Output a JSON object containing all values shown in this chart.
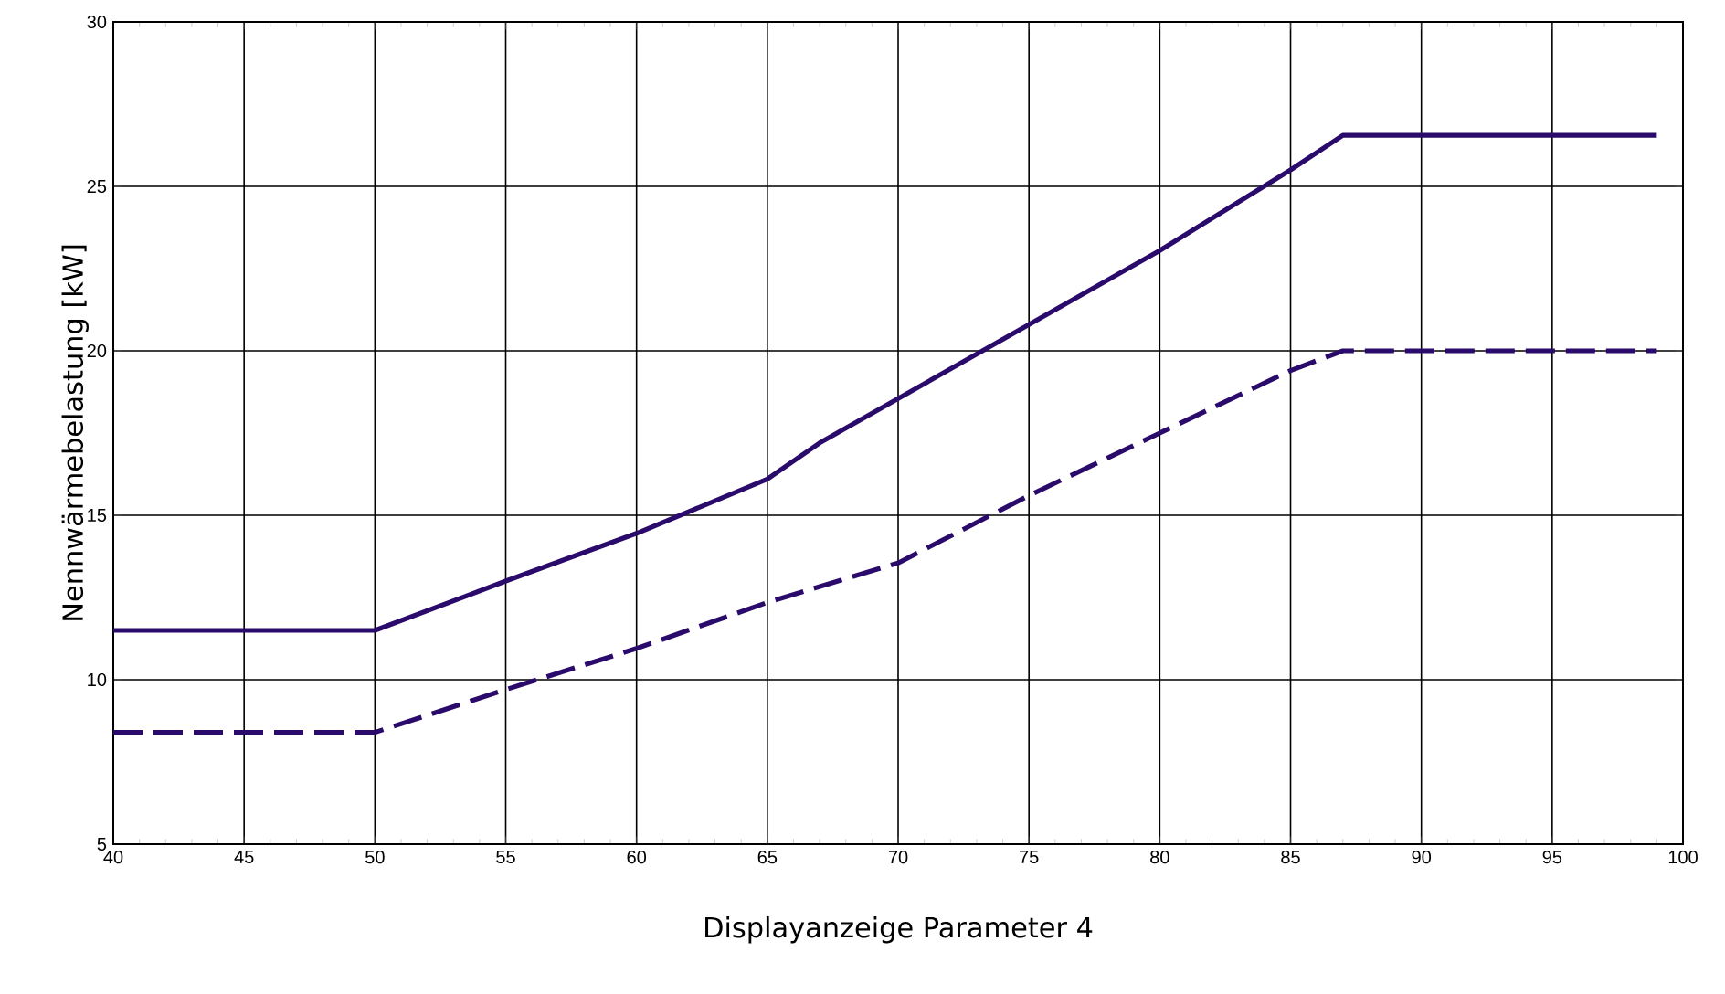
{
  "chart_data": {
    "type": "line",
    "xlabel": "Displayanzeige Parameter 4",
    "ylabel": "Nennwärmebelastung  [kW]",
    "xlim": [
      40,
      100
    ],
    "xticks": [
      40,
      45,
      50,
      55,
      60,
      65,
      70,
      75,
      80,
      85,
      90,
      95,
      100
    ],
    "ylim": [
      5,
      30
    ],
    "yticks": [
      5,
      10,
      15,
      20,
      25,
      30
    ],
    "grid": true,
    "marker": "none",
    "series": [
      {
        "color": "#2a0a6a",
        "line_style": "solid",
        "x": [
          40,
          50,
          55,
          60,
          65,
          67,
          70,
          75,
          80,
          85,
          87,
          99
        ],
        "values": [
          11.5,
          11.5,
          13.0,
          14.45,
          16.1,
          17.2,
          18.55,
          20.8,
          23.05,
          25.5,
          26.55,
          26.55
        ]
      },
      {
        "color": "#2a0a6a",
        "line_style": "dashed",
        "x": [
          40,
          50,
          55,
          60,
          65,
          70,
          75,
          80,
          85,
          87,
          99
        ],
        "values": [
          8.4,
          8.4,
          9.7,
          10.95,
          12.35,
          13.55,
          15.6,
          17.5,
          19.4,
          20.0,
          20.0
        ]
      }
    ]
  }
}
